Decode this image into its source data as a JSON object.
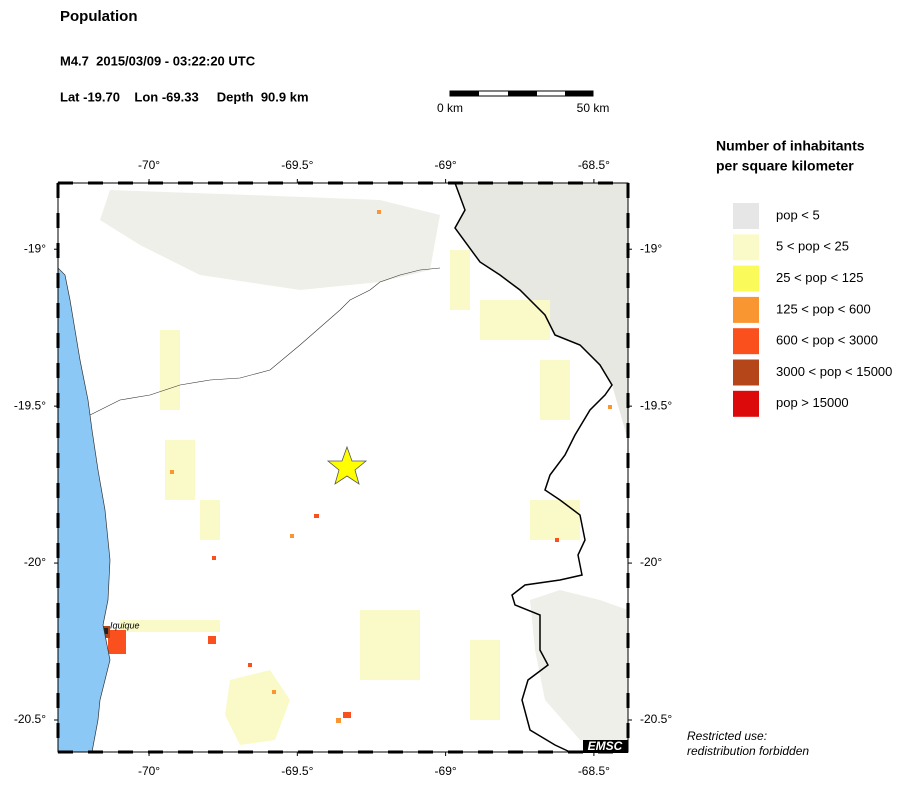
{
  "header": {
    "title": "Population",
    "event": "M4.7  2015/03/09 - 03:22:20 UTC",
    "location": "Lat -19.70    Lon -69.33     Depth  90.9 km"
  },
  "scale": {
    "start": "0 km",
    "end": "50 km"
  },
  "map": {
    "lonlim": [
      -70.307,
      -68.385
    ],
    "latlim": [
      -20.602,
      -18.789
    ],
    "lonticks": [
      {
        "value": -70,
        "label": "-70°"
      },
      {
        "value": -69.5,
        "label": "-69.5°"
      },
      {
        "value": -69,
        "label": "-69°"
      },
      {
        "value": -68.5,
        "label": "-68.5°"
      }
    ],
    "latticks": [
      {
        "value": -19,
        "label": "-19°"
      },
      {
        "value": -19.5,
        "label": "-19.5°"
      },
      {
        "value": -20,
        "label": "-20°"
      },
      {
        "value": -20.5,
        "label": "-20.5°"
      }
    ],
    "place_label": "Iquique",
    "credit": "EMSC"
  },
  "legend": {
    "title_lines": [
      "Number of inhabitants",
      "per square kilometer"
    ],
    "items": [
      {
        "label": "pop < 5",
        "color": "#e6e6e6"
      },
      {
        "label": "5 < pop < 25",
        "color": "#fafac8"
      },
      {
        "label": "25 < pop < 125",
        "color": "#fafa5a"
      },
      {
        "label": "125 < pop < 600",
        "color": "#fa9632"
      },
      {
        "label": "600 < pop < 3000",
        "color": "#fa501e"
      },
      {
        "label": "3000 < pop < 15000",
        "color": "#b4461a"
      },
      {
        "label": "pop > 15000",
        "color": "#dc0a0a"
      }
    ]
  },
  "footer": {
    "lines": [
      "Restricted use:",
      "redistribution forbidden"
    ]
  }
}
